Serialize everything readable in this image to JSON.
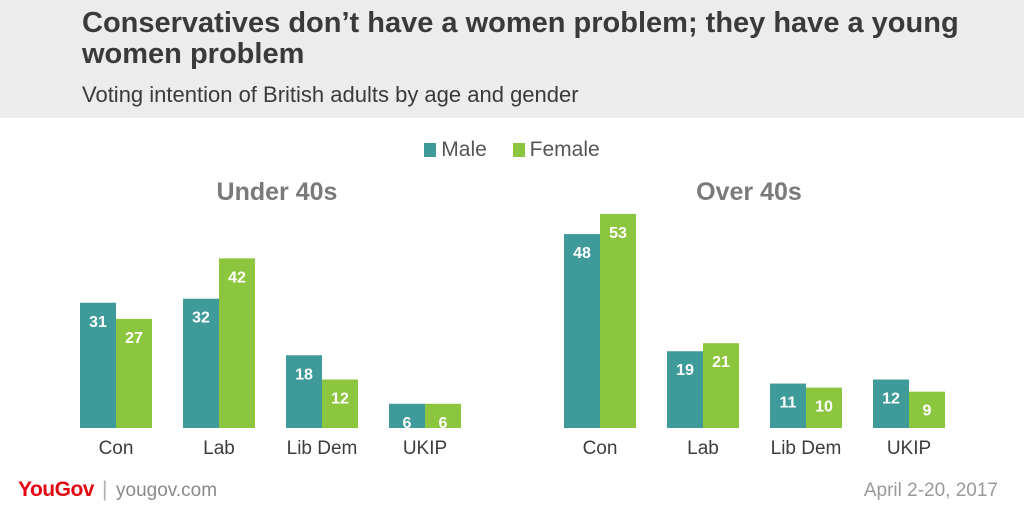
{
  "title": "Conservatives don’t have a women problem; they have a young women problem",
  "subtitle": "Voting intention of British adults by age and gender",
  "legend": [
    {
      "label": "Male",
      "color": "#3f9a9a"
    },
    {
      "label": "Female",
      "color": "#8cc63f"
    }
  ],
  "chart_data": [
    {
      "type": "bar",
      "title": "Under 40s",
      "categories": [
        "Con",
        "Lab",
        "Lib Dem",
        "UKIP"
      ],
      "series": [
        {
          "name": "Male",
          "values": [
            31,
            32,
            18,
            6
          ]
        },
        {
          "name": "Female",
          "values": [
            27,
            42,
            12,
            6
          ]
        }
      ]
    },
    {
      "type": "bar",
      "title": "Over 40s",
      "categories": [
        "Con",
        "Lab",
        "Lib Dem",
        "UKIP"
      ],
      "series": [
        {
          "name": "Male",
          "values": [
            48,
            19,
            11,
            12
          ]
        },
        {
          "name": "Female",
          "values": [
            53,
            21,
            10,
            9
          ]
        }
      ]
    }
  ],
  "footer": {
    "brand": "YouGov",
    "separator": "|",
    "url": "yougov.com",
    "date": "April 2-20, 2017"
  }
}
